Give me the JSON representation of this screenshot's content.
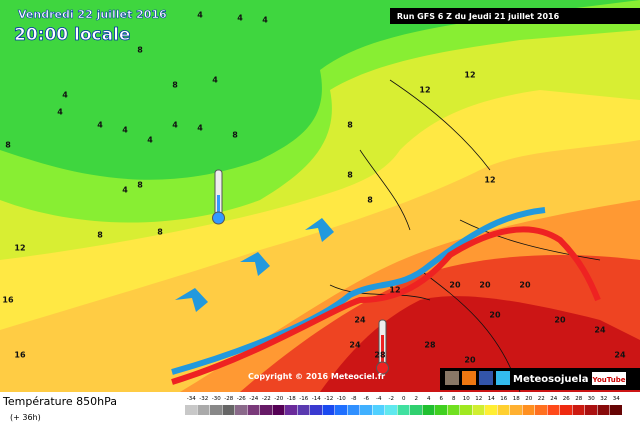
{
  "header": {
    "date": "Vendredi 22 juillet 2016",
    "time": "20:00 locale",
    "run": "Run GFS 6 Z du Jeudi 21 juillet 2016"
  },
  "map": {
    "contour_labels": [
      "4",
      "4",
      "4",
      "8",
      "4",
      "8",
      "4",
      "4",
      "4",
      "4",
      "4",
      "4",
      "4",
      "8",
      "8",
      "8",
      "4",
      "8",
      "8",
      "8",
      "8",
      "8",
      "12",
      "12",
      "12",
      "12",
      "16",
      "16",
      "12",
      "20",
      "20",
      "20",
      "20",
      "24",
      "24",
      "28",
      "28",
      "24",
      "24",
      "20",
      "20"
    ],
    "copyright": "Copyright © 2016 Meteociel.fr",
    "brand": "Meteosojuela",
    "video": "YouTube"
  },
  "footer": {
    "title": "Température 850hPa",
    "subtitle": "(+ 36h)",
    "scale": [
      -34,
      -32,
      -30,
      -28,
      -26,
      -24,
      -22,
      -20,
      -18,
      -16,
      -14,
      -12,
      -10,
      -8,
      -6,
      -4,
      -2,
      0,
      2,
      4,
      6,
      8,
      10,
      12,
      14,
      16,
      18,
      20,
      22,
      24,
      26,
      28,
      30,
      32,
      34
    ]
  }
}
